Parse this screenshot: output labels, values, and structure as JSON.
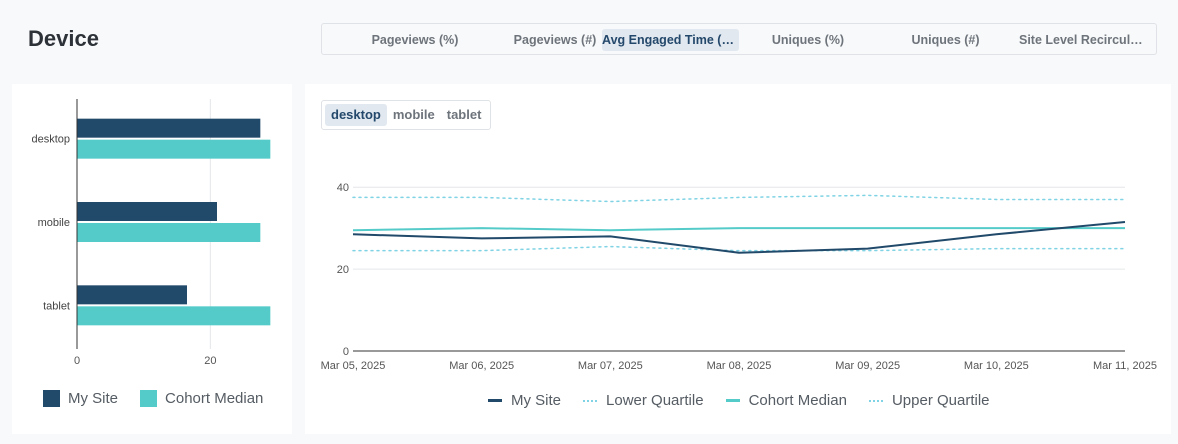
{
  "header": {
    "title": "Device"
  },
  "metric_tabs": [
    {
      "label": "Pageviews (%)",
      "active": false
    },
    {
      "label": "Pageviews (#)",
      "active": false
    },
    {
      "label": "Avg Engaged Time (sec)",
      "active": true
    },
    {
      "label": "Uniques (%)",
      "active": false
    },
    {
      "label": "Uniques (#)",
      "active": false
    },
    {
      "label": "Site Level Recirculation",
      "active": false
    }
  ],
  "device_tabs": [
    {
      "label": "desktop",
      "active": true
    },
    {
      "label": "mobile",
      "active": false
    },
    {
      "label": "tablet",
      "active": false
    }
  ],
  "colors": {
    "my_site": "#21496a",
    "cohort_median": "#55cbc9",
    "quartile": "#7fd3e4",
    "axis": "#333333",
    "grid": "#e4e6e9"
  },
  "chart_data": [
    {
      "type": "bar",
      "orientation": "horizontal",
      "categories": [
        "desktop",
        "mobile",
        "tablet"
      ],
      "series": [
        {
          "name": "My Site",
          "values": [
            27.5,
            21,
            16.5
          ]
        },
        {
          "name": "Cohort Median",
          "values": [
            29,
            27.5,
            29
          ]
        }
      ],
      "x_ticks": [
        0,
        20
      ],
      "xlim": [
        0,
        30
      ],
      "grid": true,
      "legend": "bottom"
    },
    {
      "type": "line",
      "x": [
        "Mar 05, 2025",
        "Mar 06, 2025",
        "Mar 07, 2025",
        "Mar 08, 2025",
        "Mar 09, 2025",
        "Mar 10, 2025",
        "Mar 11, 2025"
      ],
      "series": [
        {
          "name": "My Site",
          "style": "solid",
          "values": [
            28.5,
            27.5,
            28,
            24,
            25,
            28.5,
            31.5
          ]
        },
        {
          "name": "Lower Quartile",
          "style": "dotted",
          "values": [
            24.5,
            24.5,
            25.5,
            24.5,
            24.5,
            25,
            25
          ]
        },
        {
          "name": "Cohort Median",
          "style": "solid",
          "values": [
            29.5,
            30,
            29.5,
            30,
            30,
            30,
            30
          ]
        },
        {
          "name": "Upper Quartile",
          "style": "dotted",
          "values": [
            37.5,
            37.5,
            36.5,
            37.5,
            38,
            37,
            37
          ]
        }
      ],
      "y_ticks": [
        0,
        20,
        40
      ],
      "ylim": [
        0,
        42
      ],
      "grid": true,
      "legend": "bottom"
    }
  ]
}
